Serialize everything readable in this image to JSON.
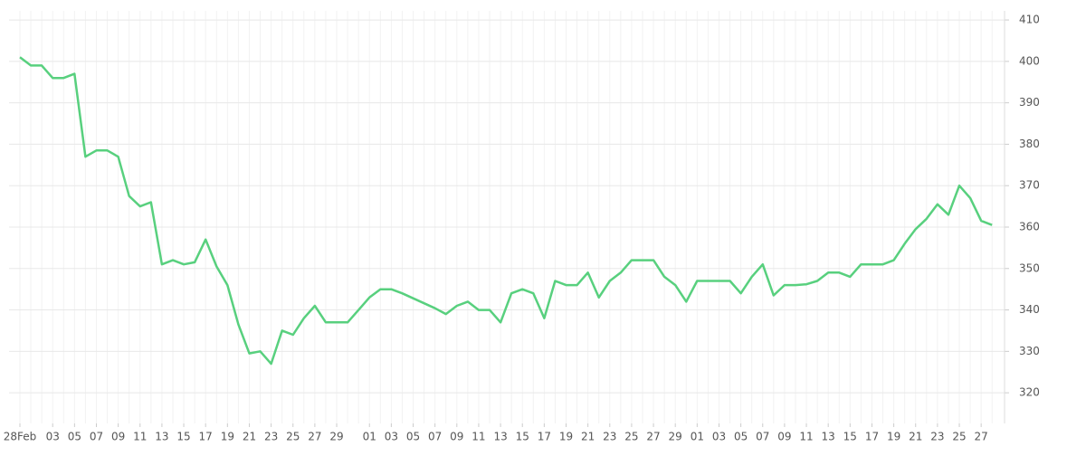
{
  "chart_data": {
    "type": "line",
    "color": "#58d07e",
    "grid": true,
    "categories": [
      "28Feb",
      null,
      null,
      "03",
      null,
      "05",
      null,
      "07",
      null,
      "09",
      null,
      "11",
      null,
      "13",
      null,
      "15",
      null,
      "17",
      null,
      "19",
      null,
      "21",
      null,
      "23",
      null,
      "25",
      null,
      "27",
      null,
      "29",
      null,
      null,
      "01",
      null,
      "03",
      null,
      "05",
      null,
      "07",
      null,
      "09",
      null,
      "11",
      null,
      "13",
      null,
      "15",
      null,
      "17",
      null,
      "19",
      null,
      "21",
      null,
      "23",
      null,
      "25",
      null,
      "27",
      null,
      "29",
      null,
      "01",
      null,
      "03",
      null,
      "05",
      null,
      "07",
      null,
      "09",
      null,
      "11",
      null,
      "13",
      null,
      "15",
      null,
      "17",
      null,
      "19",
      null,
      "21",
      null,
      "23",
      null,
      "25",
      null,
      "27",
      null
    ],
    "values": [
      401,
      399,
      399,
      396,
      396,
      397,
      377,
      378.5,
      378.5,
      377,
      367.5,
      365,
      366,
      351,
      352,
      351,
      351.5,
      357,
      350.5,
      346,
      336.5,
      329.5,
      330,
      327,
      335,
      334,
      338,
      341,
      337,
      337,
      337,
      340,
      343,
      345,
      345,
      344,
      342.8,
      341.6,
      340.4,
      339,
      341,
      342,
      340,
      340,
      337,
      344,
      345,
      344,
      338,
      347,
      346,
      346,
      349,
      343,
      347,
      349,
      352,
      352,
      352,
      348,
      346,
      342,
      347,
      347,
      347,
      347,
      344,
      348,
      351,
      343.5,
      346,
      346,
      346.2,
      347,
      349,
      349,
      348,
      351,
      351,
      351,
      352,
      356,
      359.5,
      362,
      365.5,
      363,
      370,
      367,
      361.5,
      360.5
    ],
    "ylim": [
      312.6,
      412.2
    ],
    "yticks": [
      320,
      330,
      340,
      350,
      360,
      370,
      380,
      390,
      400,
      410
    ]
  }
}
